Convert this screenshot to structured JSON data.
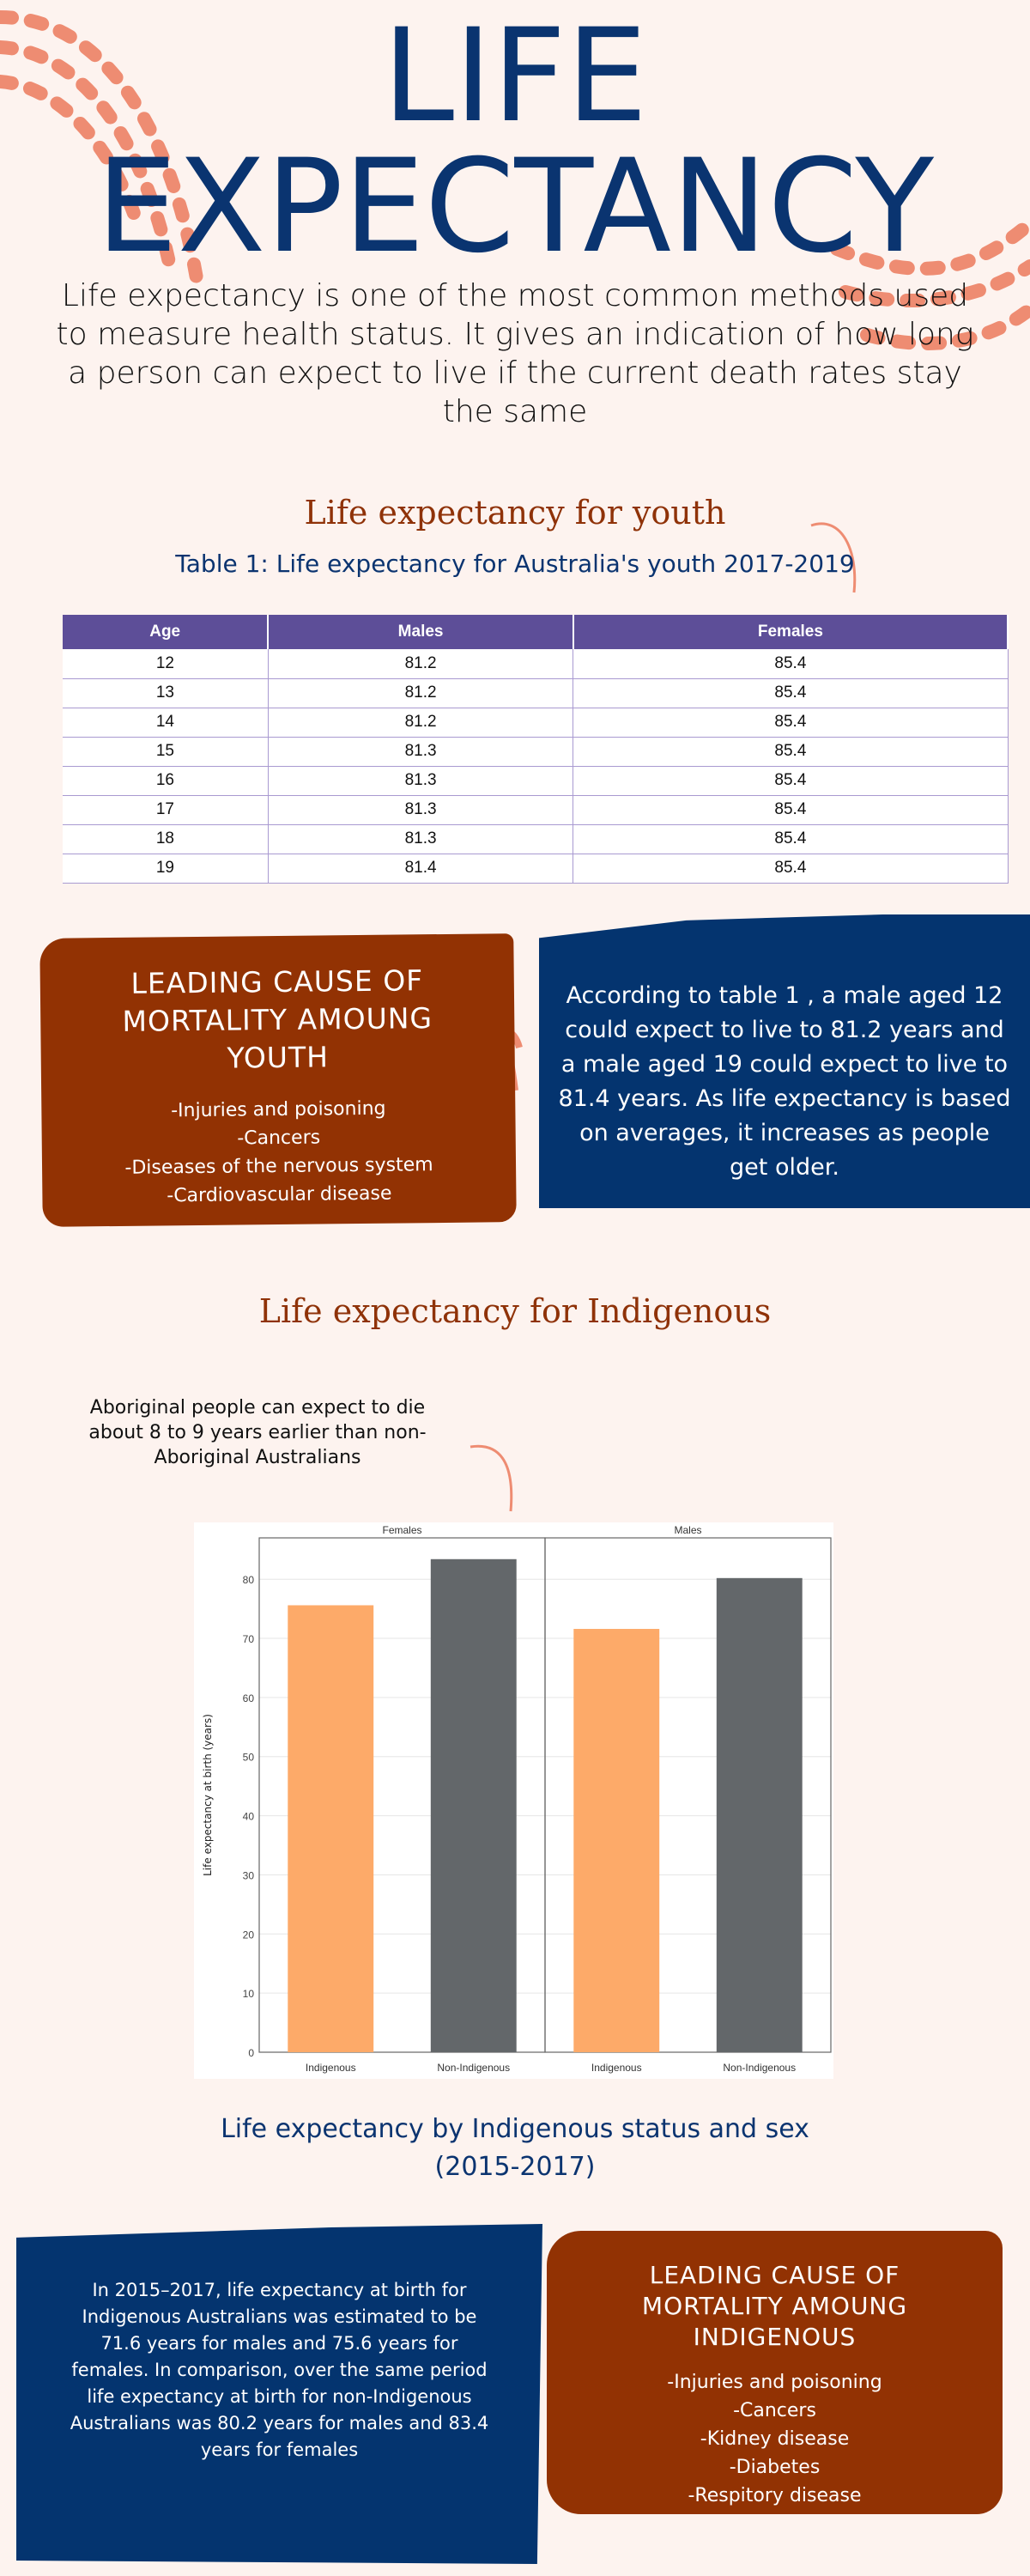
{
  "header": {
    "title_line1": "LIFE",
    "title_line2": "EXPECTANCY",
    "intro": "Life expectancy is one of the most common methods used to measure health status. It gives an indication of how long a person can expect to live if the current death rates stay the same"
  },
  "youth": {
    "heading": "Life expectancy for youth",
    "table_caption": "Table 1: Life expectancy for Australia's youth 2017-2019",
    "columns": [
      "Age",
      "Males",
      "Females"
    ],
    "rows": [
      [
        "12",
        "81.2",
        "85.4"
      ],
      [
        "13",
        "81.2",
        "85.4"
      ],
      [
        "14",
        "81.2",
        "85.4"
      ],
      [
        "15",
        "81.3",
        "85.4"
      ],
      [
        "16",
        "81.3",
        "85.4"
      ],
      [
        "17",
        "81.3",
        "85.4"
      ],
      [
        "18",
        "81.3",
        "85.4"
      ],
      [
        "19",
        "81.4",
        "85.4"
      ]
    ],
    "cause_title": "LEADING CAUSE OF MORTALITY AMOUNG YOUTH",
    "causes": [
      "-Injuries and poisoning",
      "-Cancers",
      "-Diseases of the nervous system",
      "-Cardiovascular disease"
    ],
    "note": "According to table 1 , a male aged 12 could expect to live to 81.2 years and a male aged 19 could expect to live to 81.4 years. As life expectancy is based on averages, it increases as people get older."
  },
  "indigenous": {
    "heading": "Life expectancy for Indigenous",
    "callout": "Aboriginal people can expect to die about 8 to 9 years earlier than non-Aboriginal Australians",
    "chart_caption": "Life expectancy by Indigenous status and sex (2015-2017)",
    "note": "In 2015–2017, life expectancy at birth for Indigenous Australians was estimated to be 71.6 years for males and 75.6 years for females. In comparison, over the same period life expectancy at birth for non-Indigenous Australians was 80.2 years for males and 83.4 years for females",
    "cause_title": "LEADING CAUSE OF MORTALITY AMOUNG INDIGENOUS",
    "causes": [
      "-Injuries and poisoning",
      "-Cancers",
      "-Kidney disease",
      "-Diabetes",
      "-Respitory disease"
    ]
  },
  "chart_data": {
    "type": "bar",
    "panels": [
      "Females",
      "Males"
    ],
    "categories": [
      "Indigenous",
      "Non-Indigenous"
    ],
    "series": [
      {
        "name": "Females",
        "values": [
          75.6,
          83.4
        ]
      },
      {
        "name": "Males",
        "values": [
          71.6,
          80.2
        ]
      }
    ],
    "ylabel": "Life expectancy at birth (years)",
    "ylim": [
      0,
      87
    ],
    "yticks": [
      0,
      10,
      20,
      30,
      40,
      50,
      60,
      70,
      80
    ],
    "colors": {
      "Indigenous": "#fdaa69",
      "Non-Indigenous": "#63676a"
    },
    "grid": true
  }
}
